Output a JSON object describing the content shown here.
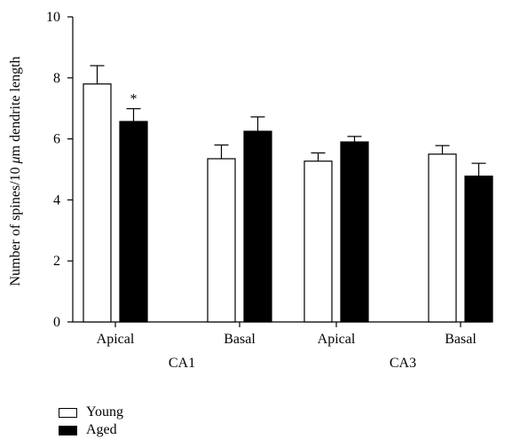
{
  "chart_data": {
    "type": "bar",
    "title": "",
    "ylabel_prefix": "Number of spines/10 ",
    "ylabel_mu": "μ",
    "ylabel_suffix": "m dendrite length",
    "xlabel": "",
    "ylim": [
      0,
      10
    ],
    "yticks": [
      0,
      2,
      4,
      6,
      8,
      10
    ],
    "categories": [
      "Apical",
      "Basal",
      "Apical",
      "Basal"
    ],
    "groups": [
      {
        "label": "CA1",
        "categories": [
          "Apical",
          "Basal"
        ]
      },
      {
        "label": "CA3",
        "categories": [
          "Apical",
          "Basal"
        ]
      }
    ],
    "series": [
      {
        "name": "Young",
        "color": "#ffffff",
        "values": [
          7.8,
          5.35,
          5.27,
          5.5
        ],
        "errors": [
          0.6,
          0.45,
          0.27,
          0.28
        ]
      },
      {
        "name": "Aged",
        "color": "#000000",
        "values": [
          6.57,
          6.25,
          5.9,
          4.78
        ],
        "errors": [
          0.42,
          0.47,
          0.18,
          0.42
        ]
      }
    ],
    "annotations": [
      {
        "text": "*",
        "category_index": 0,
        "series_index": 1
      }
    ],
    "grid": false,
    "legend_position": "bottom-left"
  }
}
